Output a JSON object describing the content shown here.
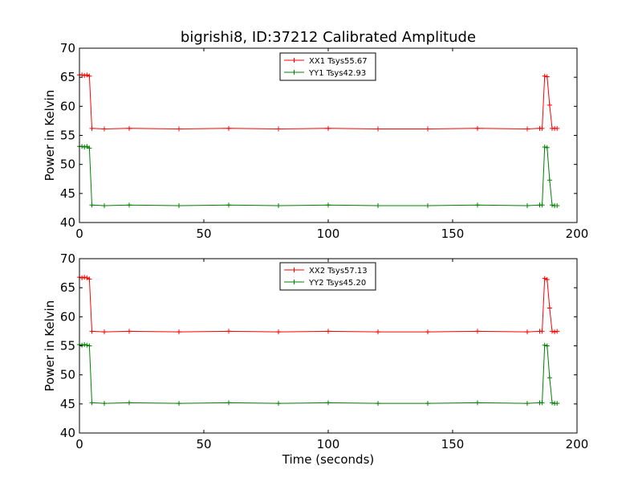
{
  "chart_data": [
    {
      "type": "line",
      "title": "bigrishi8, ID:37212 Calibrated Amplitude",
      "xlabel": "",
      "ylabel": "Power in Kelvin",
      "xlim": [
        0,
        200
      ],
      "ylim": [
        40,
        70
      ],
      "xticks": [
        "0",
        "50",
        "100",
        "150",
        "200"
      ],
      "yticks": [
        "40",
        "45",
        "50",
        "55",
        "60",
        "65",
        "70"
      ],
      "legend_position": "top-center",
      "grid": false,
      "x": [
        0,
        1,
        2,
        3,
        4,
        5,
        10,
        20,
        40,
        60,
        80,
        100,
        120,
        140,
        160,
        180,
        185,
        186,
        187,
        188,
        189,
        190,
        191,
        192
      ],
      "series": [
        {
          "name": "XX1 Tsys55.67",
          "color": "#ff0000",
          "marker": "+",
          "values": [
            65.4,
            65.4,
            65.3,
            65.4,
            65.2,
            56.2,
            56.1,
            56.2,
            56.1,
            56.2,
            56.1,
            56.2,
            56.1,
            56.1,
            56.2,
            56.1,
            56.2,
            56.2,
            65.2,
            65.1,
            60.2,
            56.2,
            56.2,
            56.2
          ]
        },
        {
          "name": "YY1 Tsys42.93",
          "color": "#008000",
          "marker": "+",
          "values": [
            53.1,
            53.1,
            53.0,
            53.1,
            52.8,
            43.0,
            42.9,
            43.0,
            42.9,
            43.0,
            42.9,
            43.0,
            42.9,
            42.9,
            43.0,
            42.9,
            43.0,
            43.0,
            53.0,
            52.9,
            47.3,
            43.0,
            42.9,
            42.9
          ]
        }
      ]
    },
    {
      "type": "line",
      "title": "",
      "xlabel": "Time (seconds)",
      "ylabel": "Power in Kelvin",
      "xlim": [
        0,
        200
      ],
      "ylim": [
        40,
        70
      ],
      "xticks": [
        "0",
        "50",
        "100",
        "150",
        "200"
      ],
      "yticks": [
        "40",
        "45",
        "50",
        "55",
        "60",
        "65",
        "70"
      ],
      "legend_position": "top-center",
      "grid": false,
      "x": [
        0,
        1,
        2,
        3,
        4,
        5,
        10,
        20,
        40,
        60,
        80,
        100,
        120,
        140,
        160,
        180,
        185,
        186,
        187,
        188,
        189,
        190,
        191,
        192
      ],
      "series": [
        {
          "name": "XX2 Tsys57.13",
          "color": "#ff0000",
          "marker": "+",
          "values": [
            66.8,
            66.7,
            66.8,
            66.7,
            66.5,
            57.5,
            57.4,
            57.5,
            57.4,
            57.5,
            57.4,
            57.5,
            57.4,
            57.4,
            57.5,
            57.4,
            57.5,
            57.5,
            66.6,
            66.4,
            61.5,
            57.5,
            57.4,
            57.5
          ]
        },
        {
          "name": "YY2 Tsys45.20",
          "color": "#008000",
          "marker": "+",
          "values": [
            55.2,
            55.1,
            55.2,
            55.1,
            55.0,
            45.2,
            45.1,
            45.2,
            45.1,
            45.2,
            45.1,
            45.2,
            45.1,
            45.1,
            45.2,
            45.1,
            45.2,
            45.2,
            55.1,
            55.0,
            49.5,
            45.2,
            45.1,
            45.1
          ]
        }
      ]
    }
  ]
}
